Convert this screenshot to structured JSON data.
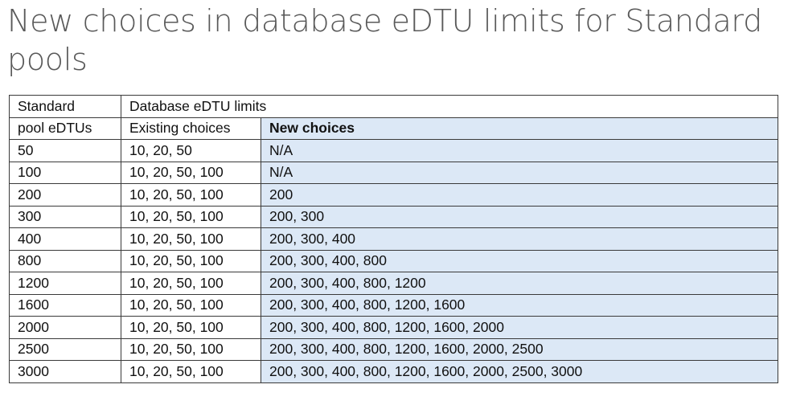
{
  "title": "New choices in database eDTU limits for Standard pools",
  "table": {
    "header_pool_line1": "Standard",
    "header_pool_line2": "pool eDTUs",
    "header_group": "Database eDTU limits",
    "header_existing": "Existing choices",
    "header_new": "New choices",
    "rows": [
      {
        "pool": "50",
        "existing": "10, 20, 50",
        "new": "N/A"
      },
      {
        "pool": "100",
        "existing": "10, 20, 50, 100",
        "new": "N/A"
      },
      {
        "pool": "200",
        "existing": "10, 20, 50, 100",
        "new": "200"
      },
      {
        "pool": "300",
        "existing": "10, 20, 50, 100",
        "new": "200, 300"
      },
      {
        "pool": "400",
        "existing": "10, 20, 50, 100",
        "new": "200, 300, 400"
      },
      {
        "pool": "800",
        "existing": "10, 20, 50, 100",
        "new": "200, 300, 400, 800"
      },
      {
        "pool": "1200",
        "existing": "10, 20, 50, 100",
        "new": "200, 300, 400, 800, 1200"
      },
      {
        "pool": "1600",
        "existing": "10, 20, 50, 100",
        "new": "200, 300, 400, 800, 1200, 1600"
      },
      {
        "pool": "2000",
        "existing": "10, 20, 50, 100",
        "new": "200, 300, 400, 800, 1200, 1600, 2000"
      },
      {
        "pool": "2500",
        "existing": "10, 20, 50, 100",
        "new": "200, 300, 400, 800, 1200, 1600, 2000, 2500"
      },
      {
        "pool": "3000",
        "existing": "10, 20, 50, 100",
        "new": "200, 300, 400, 800, 1200, 1600, 2000, 2500, 3000"
      }
    ],
    "colors": {
      "new_choices_fill": "#dce8f6",
      "border": "#3a3a3a",
      "title_text": "#595959"
    }
  }
}
